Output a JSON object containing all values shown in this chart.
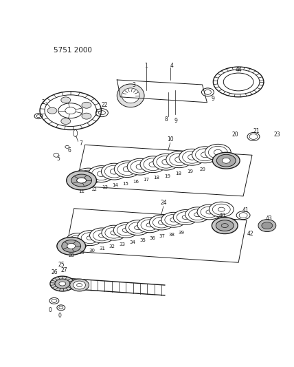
{
  "title": "5751 2000",
  "bg_color": "#ffffff",
  "line_color": "#1a1a1a",
  "fig_width": 4.28,
  "fig_height": 5.33,
  "dpi": 100
}
